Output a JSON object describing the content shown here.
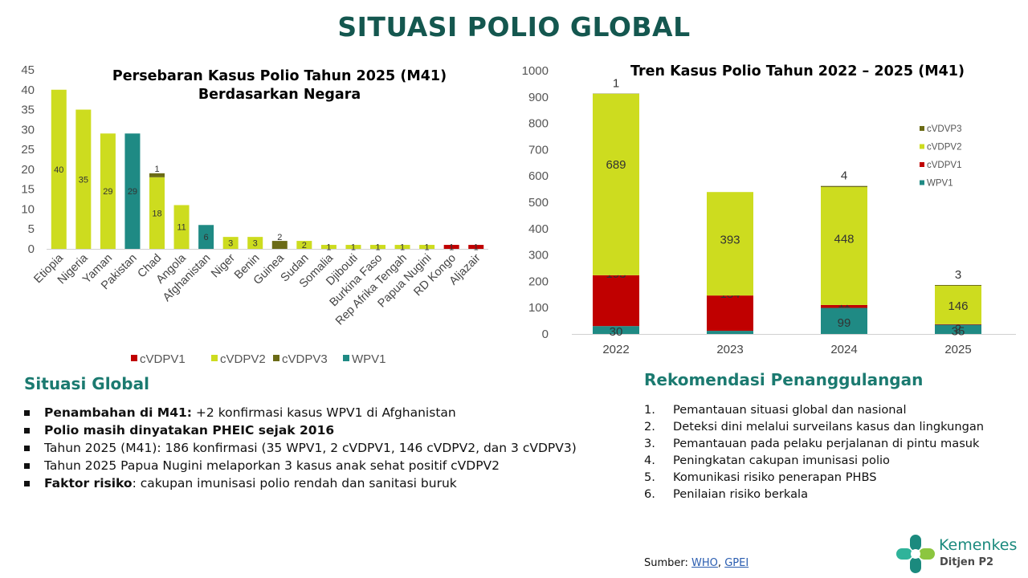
{
  "title": "SITUASI POLIO GLOBAL",
  "colors": {
    "title": "#14574f",
    "section_title": "#1b7a70",
    "cVDPV1": "#c00000",
    "cVDPV2": "#cddc1f",
    "cVDPV3": "#6b6b16",
    "WPV1": "#1f8a84"
  },
  "chart_data": [
    {
      "type": "bar",
      "stacked": true,
      "title": "Persebaran Kasus Polio Tahun 2025 (M41)",
      "subtitle": "Berdasarkan Negara",
      "ylim": [
        0,
        45
      ],
      "yticks": [
        0,
        5,
        10,
        15,
        20,
        25,
        30,
        35,
        40,
        45
      ],
      "categories": [
        "Etiopia",
        "Nigeria",
        "Yaman",
        "Pakistan",
        "Chad",
        "Angola",
        "Afghanistan",
        "Niger",
        "Benin",
        "Guinea",
        "Sudan",
        "Somalia",
        "Djibouti",
        "Burkina Faso",
        "Rep Afrika Tengah",
        "Papua Nugini",
        "RD Kongo",
        "Aljazair"
      ],
      "legend_position": "bottom",
      "series": [
        {
          "name": "cVDPV1",
          "color_key": "cVDPV1",
          "values": [
            0,
            0,
            0,
            0,
            0,
            0,
            0,
            0,
            0,
            0,
            0,
            0,
            0,
            0,
            0,
            0,
            1,
            1
          ]
        },
        {
          "name": "cVDPV2",
          "color_key": "cVDPV2",
          "values": [
            40,
            35,
            29,
            0,
            18,
            11,
            0,
            3,
            3,
            0,
            2,
            1,
            1,
            1,
            1,
            1,
            0,
            0
          ]
        },
        {
          "name": "cVDPV3",
          "color_key": "cVDPV3",
          "values": [
            0,
            0,
            0,
            0,
            1,
            0,
            0,
            0,
            0,
            2,
            0,
            0,
            0,
            0,
            0,
            0,
            0,
            0
          ]
        },
        {
          "name": "WPV1",
          "color_key": "WPV1",
          "values": [
            0,
            0,
            0,
            29,
            0,
            0,
            6,
            0,
            0,
            0,
            0,
            0,
            0,
            0,
            0,
            0,
            0,
            0
          ]
        }
      ]
    },
    {
      "type": "bar",
      "stacked": true,
      "title": "Tren Kasus Polio Tahun 2022 – 2025 (M41)",
      "ylim": [
        0,
        1000
      ],
      "yticks": [
        0,
        100,
        200,
        300,
        400,
        500,
        600,
        700,
        800,
        900,
        1000
      ],
      "categories": [
        "2022",
        "2023",
        "2024",
        "2025"
      ],
      "legend_position": "right",
      "series": [
        {
          "name": "WPV1",
          "color_key": "WPV1",
          "values": [
            30,
            12,
            99,
            35
          ]
        },
        {
          "name": "cVDPV1",
          "color_key": "cVDPV1",
          "values": [
            193,
            134,
            11,
            2
          ]
        },
        {
          "name": "cVDPV2",
          "color_key": "cVDPV2",
          "values": [
            689,
            393,
            448,
            146
          ]
        },
        {
          "name": "cVDVP3",
          "color_key": "cVDPV3",
          "values": [
            1,
            0,
            4,
            3
          ]
        }
      ]
    }
  ],
  "situasi_global": {
    "title": "Situasi Global",
    "items": [
      {
        "bold": "Penambahan di M41:",
        "text": " +2 konfirmasi kasus WPV1 di Afghanistan"
      },
      {
        "bold": "Polio masih dinyatakan PHEIC sejak 2016",
        "text": ""
      },
      {
        "bold": "",
        "text": "Tahun 2025 (M41): 186 konfirmasi (35 WPV1, 2 cVDPV1, 146 cVDPV2, dan 3 cVDPV3)"
      },
      {
        "bold": "",
        "text": "Tahun 2025 Papua Nugini melaporkan 3 kasus anak sehat positif cVDPV2"
      },
      {
        "bold": "Faktor risiko",
        "text": ": cakupan imunisasi polio rendah dan sanitasi buruk"
      }
    ]
  },
  "rekomendasi": {
    "title": "Rekomendasi Penanggulangan",
    "items": [
      {
        "num": "1.",
        "text": "Pemantauan situasi global dan nasional"
      },
      {
        "num": "2.",
        "text": "Deteksi dini melalui surveilans kasus dan lingkungan"
      },
      {
        "num": "3.",
        "text": "Pemantauan pada pelaku perjalanan di pintu masuk"
      },
      {
        "num": "4.",
        "text": "Peningkatan cakupan imunisasi polio"
      },
      {
        "num": "5.",
        "text": "Komunikasi risiko penerapan PHBS"
      },
      {
        "num": "6.",
        "text": "Penilaian risiko berkala"
      }
    ]
  },
  "source": {
    "label": "Sumber: ",
    "links": [
      "WHO",
      "GPEI"
    ],
    "separator": ", "
  },
  "logo": {
    "name": "Kemenkes",
    "sub": "Ditjen P2",
    "icon": "kemenkes-cross-icon"
  }
}
